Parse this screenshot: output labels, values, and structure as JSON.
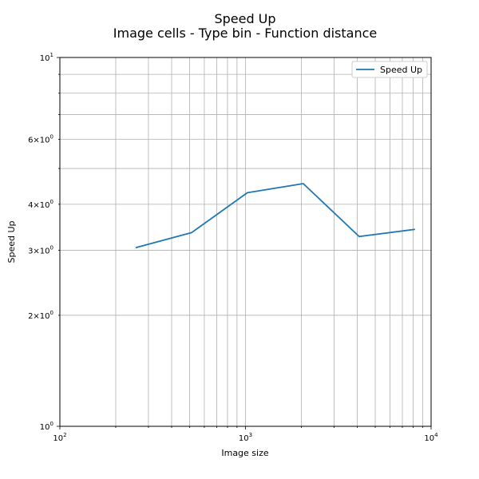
{
  "chart_data": {
    "type": "line",
    "title": "Speed Up",
    "subtitle": "Image cells - Type bin - Function distance",
    "xlabel": "Image size",
    "ylabel": "Speed Up",
    "xscale": "log",
    "yscale": "log",
    "xlim": [
      100,
      10000
    ],
    "ylim": [
      1,
      10
    ],
    "grid": "both",
    "legend_position": "top-right",
    "series": [
      {
        "name": "Speed Up",
        "color": "#1f77b4",
        "x": [
          256,
          512,
          1024,
          2048,
          4096,
          8192
        ],
        "y": [
          3.05,
          3.35,
          4.3,
          4.55,
          3.27,
          3.42
        ]
      }
    ],
    "x_ticks": [
      {
        "value": 100,
        "base": "10",
        "exp": "2"
      },
      {
        "value": 1000,
        "base": "10",
        "exp": "3"
      },
      {
        "value": 10000,
        "base": "10",
        "exp": "4"
      }
    ],
    "y_ticks": [
      {
        "value": 1,
        "mant": "",
        "base": "10",
        "exp": "0"
      },
      {
        "value": 2,
        "mant": "2×",
        "base": "10",
        "exp": "0"
      },
      {
        "value": 3,
        "mant": "3×",
        "base": "10",
        "exp": "0"
      },
      {
        "value": 4,
        "mant": "4×",
        "base": "10",
        "exp": "0"
      },
      {
        "value": 6,
        "mant": "6×",
        "base": "10",
        "exp": "0"
      },
      {
        "value": 10,
        "mant": "",
        "base": "10",
        "exp": "1"
      }
    ]
  }
}
